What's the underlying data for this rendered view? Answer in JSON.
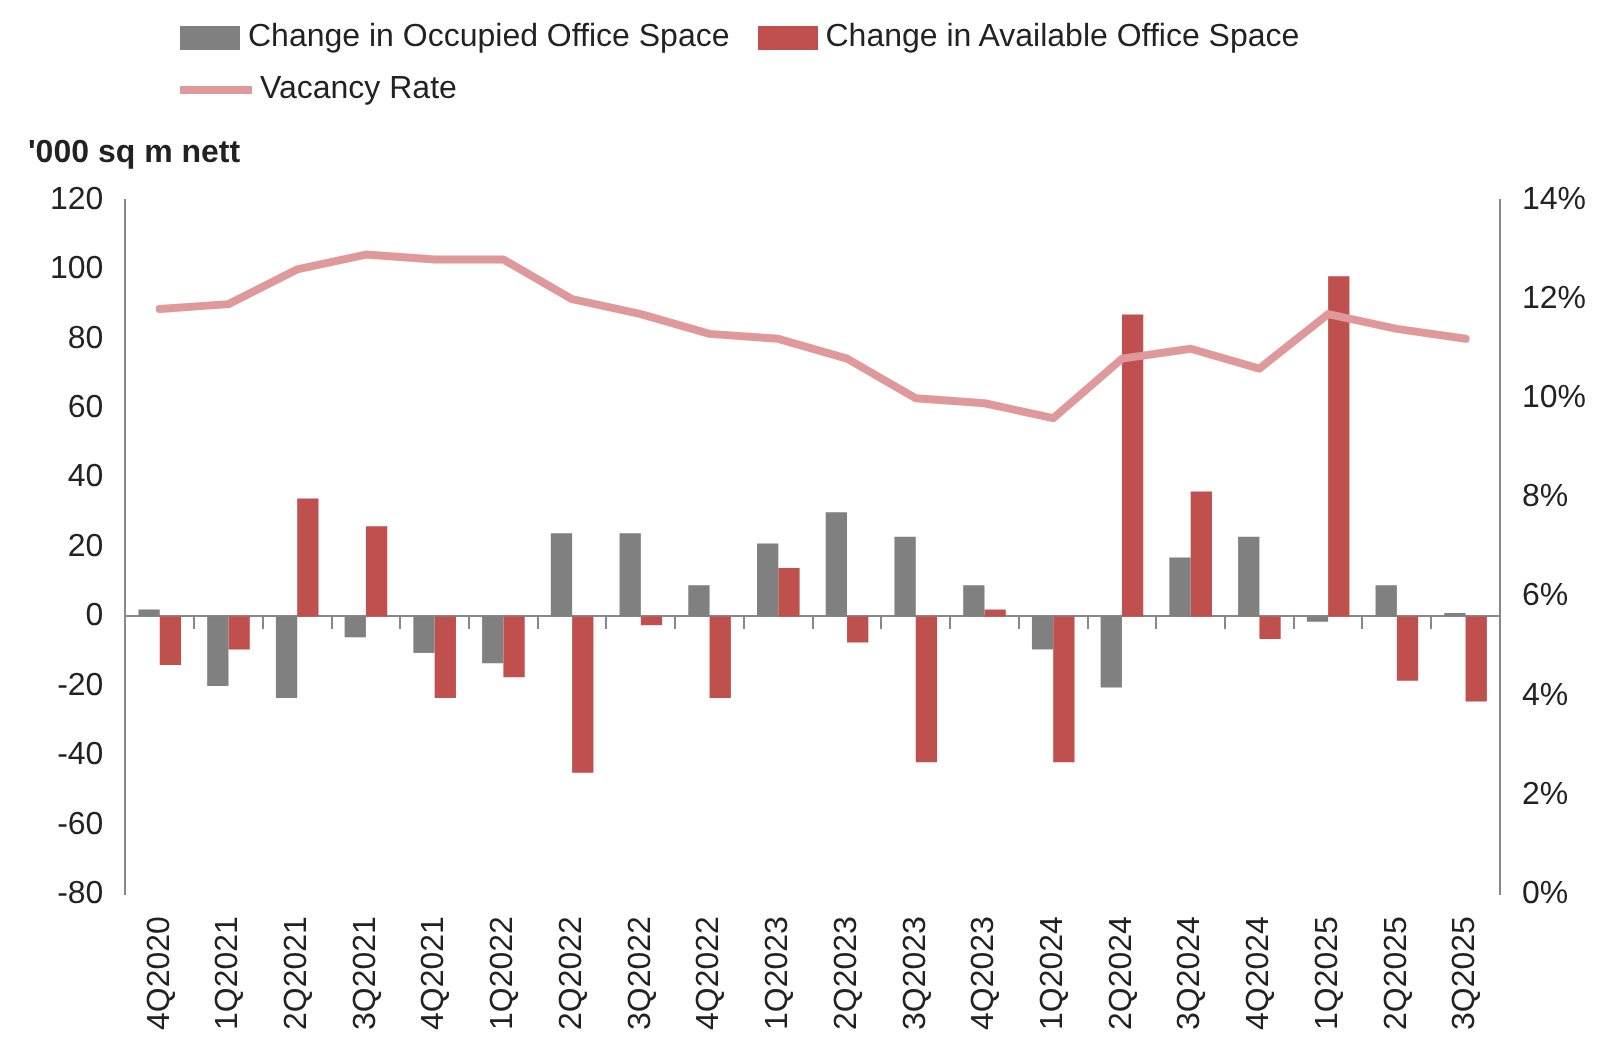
{
  "chart_data": {
    "type": "bar",
    "ylabel": "'000 sq m nett",
    "categories": [
      "4Q2020",
      "1Q2021",
      "2Q2021",
      "3Q2021",
      "4Q2021",
      "1Q2022",
      "2Q2022",
      "3Q2022",
      "4Q2022",
      "1Q2023",
      "2Q2023",
      "3Q2023",
      "4Q2023",
      "1Q2024",
      "2Q2024",
      "3Q2024",
      "4Q2024",
      "1Q2025",
      "2Q2025",
      "3Q2025"
    ],
    "series": [
      {
        "name": "Change in Occupied Office Space",
        "color": "#808080",
        "values": [
          2,
          -20,
          -23.5,
          -6,
          -10.5,
          -13.5,
          24,
          24,
          9,
          21,
          30,
          23,
          9,
          -9.5,
          -20.5,
          17,
          23,
          -1.5,
          9,
          1
        ]
      },
      {
        "name": "Change in Available Office Space",
        "color": "#c0504d",
        "values": [
          -14,
          -9.5,
          34,
          26,
          -23.5,
          -17.5,
          -45,
          -2.5,
          -23.5,
          14,
          -7.5,
          -42,
          2,
          -42,
          87,
          36,
          -6.5,
          98,
          -18.5,
          -24.5
        ]
      },
      {
        "name": "Vacancy Rate",
        "type": "line",
        "axis": "y2",
        "color": "#e0999a",
        "values": [
          11.8,
          11.9,
          12.6,
          12.9,
          12.8,
          12.8,
          12.0,
          11.7,
          11.3,
          11.2,
          10.8,
          10.0,
          9.9,
          9.6,
          10.8,
          11.0,
          10.6,
          11.7,
          11.4,
          11.2
        ]
      }
    ],
    "ylim": [
      -80,
      120
    ],
    "yticks": [
      -80,
      -60,
      -40,
      -20,
      0,
      20,
      40,
      60,
      80,
      100,
      120
    ],
    "y2lim": [
      0,
      14
    ],
    "y2ticks": [
      {
        "value": 0,
        "label": "0%"
      },
      {
        "value": 2,
        "label": "2%"
      },
      {
        "value": 4,
        "label": "4%"
      },
      {
        "value": 6,
        "label": "6%"
      },
      {
        "value": 8,
        "label": "8%"
      },
      {
        "value": 10,
        "label": "10%"
      },
      {
        "value": 12,
        "label": "12%"
      },
      {
        "value": 14,
        "label": "14%"
      }
    ],
    "legend": "top",
    "marker": "none"
  }
}
